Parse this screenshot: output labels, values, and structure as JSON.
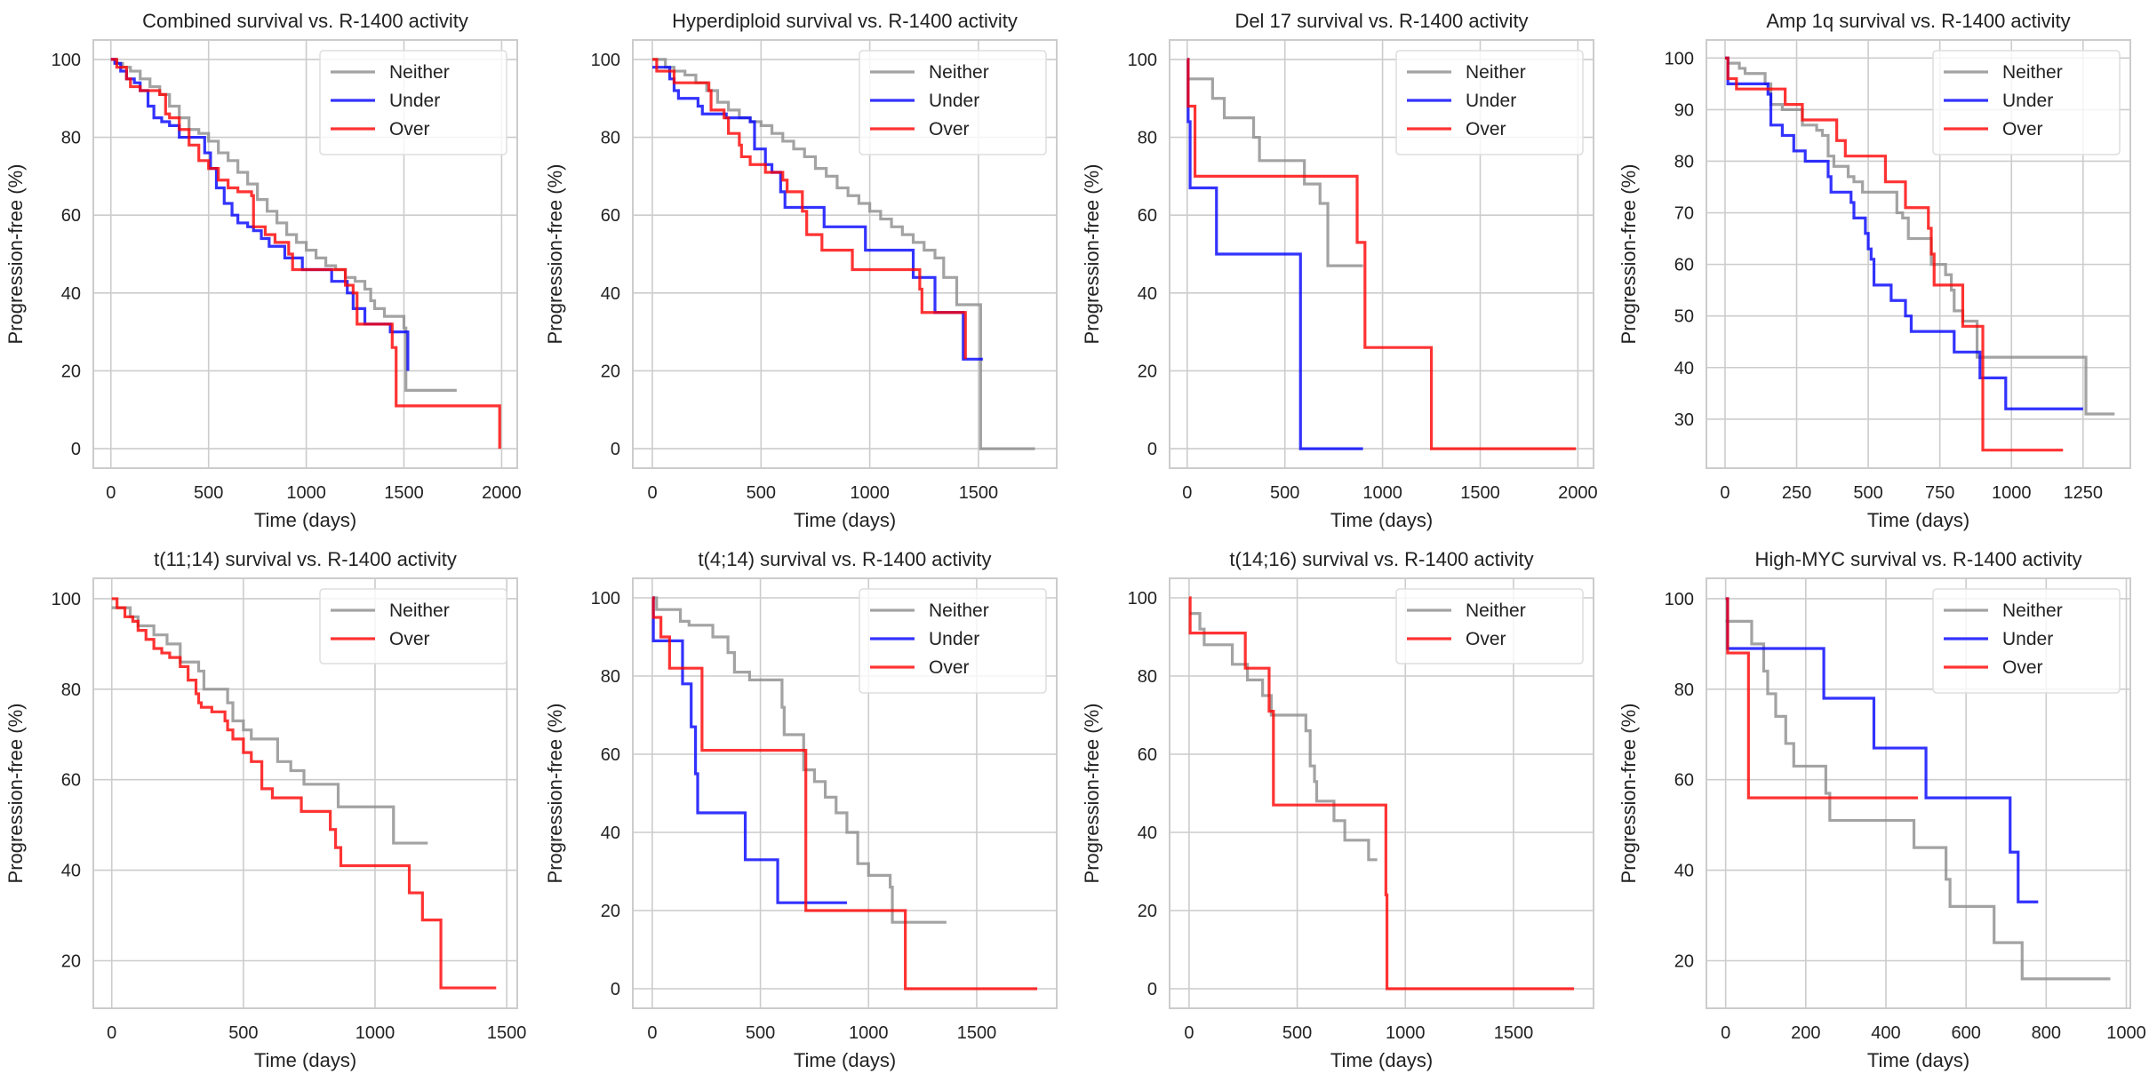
{
  "figure": {
    "series_colors": {
      "Neither": "#8c8c8c",
      "Under": "#0000ff",
      "Over": "#ff0000"
    }
  },
  "chart_data": [
    {
      "type": "line",
      "title": "Combined survival vs. R-1400 activity",
      "xlabel": "Time (days)",
      "ylabel": "Progression-free (%)",
      "xlim": [
        -90,
        2080
      ],
      "ylim": [
        -5,
        105
      ],
      "xticks": [
        0,
        500,
        1000,
        1500,
        2000
      ],
      "yticks": [
        0,
        20,
        40,
        60,
        80,
        100
      ],
      "grid": true,
      "legend": "top-right",
      "series": [
        {
          "name": "Neither",
          "x": [
            0,
            30,
            60,
            100,
            150,
            200,
            250,
            300,
            350,
            400,
            450,
            500,
            550,
            600,
            650,
            700,
            750,
            800,
            850,
            900,
            950,
            1000,
            1050,
            1100,
            1150,
            1200,
            1250,
            1300,
            1330,
            1350,
            1400,
            1500,
            1510,
            1770
          ],
          "y": [
            100,
            99,
            98,
            97,
            95,
            93,
            91,
            88,
            85,
            82,
            81,
            79,
            76,
            74,
            71,
            68,
            64,
            61,
            58,
            55,
            53,
            51,
            49,
            47,
            46,
            44,
            43,
            41,
            38,
            36,
            34,
            31,
            15,
            15
          ]
        },
        {
          "name": "Under",
          "x": [
            0,
            20,
            50,
            80,
            120,
            150,
            190,
            220,
            260,
            300,
            350,
            400,
            450,
            480,
            510,
            540,
            580,
            620,
            650,
            700,
            730,
            770,
            810,
            890,
            980,
            1130,
            1210,
            1240,
            1300,
            1430,
            1520
          ],
          "y": [
            100,
            99,
            97,
            95,
            94,
            92,
            88,
            85,
            84,
            83,
            80,
            80,
            80,
            76,
            72,
            67,
            63,
            60,
            58,
            57,
            56,
            54,
            52,
            49,
            46,
            43,
            40,
            36,
            32,
            30,
            20
          ]
        },
        {
          "name": "Over",
          "x": [
            0,
            30,
            80,
            100,
            150,
            250,
            280,
            300,
            350,
            400,
            450,
            500,
            550,
            600,
            650,
            720,
            730,
            790,
            840,
            910,
            930,
            1140,
            1200,
            1240,
            1260,
            1420,
            1440,
            1460,
            1770,
            1990
          ],
          "y": [
            100,
            98,
            95,
            93,
            92,
            91,
            86,
            85,
            82,
            78,
            74,
            72,
            69,
            67,
            66,
            65,
            57,
            55,
            53,
            50,
            46,
            46,
            42,
            40,
            32,
            32,
            26,
            11,
            11,
            0
          ]
        }
      ]
    },
    {
      "type": "line",
      "title": "Hyperdiploid survival vs. R-1400 activity",
      "xlabel": "Time (days)",
      "ylabel": "Progression-free (%)",
      "xlim": [
        -90,
        1860
      ],
      "ylim": [
        -5,
        105
      ],
      "xticks": [
        0,
        500,
        1000,
        1500
      ],
      "yticks": [
        0,
        20,
        40,
        60,
        80,
        100
      ],
      "grid": true,
      "legend": "top-right",
      "series": [
        {
          "name": "Neither",
          "x": [
            0,
            60,
            100,
            150,
            200,
            250,
            300,
            350,
            400,
            450,
            500,
            550,
            600,
            650,
            700,
            750,
            800,
            850,
            900,
            950,
            1000,
            1050,
            1100,
            1150,
            1200,
            1250,
            1300,
            1340,
            1400,
            1510,
            1760
          ],
          "y": [
            100,
            98,
            97,
            96,
            94,
            92,
            89,
            87,
            85,
            84,
            83,
            81,
            79,
            77,
            75,
            72,
            70,
            67,
            65,
            63,
            61,
            59,
            57,
            55,
            53,
            51,
            49,
            44,
            37,
            0,
            0
          ]
        },
        {
          "name": "Under",
          "x": [
            0,
            70,
            80,
            100,
            120,
            210,
            230,
            340,
            450,
            470,
            520,
            550,
            590,
            610,
            790,
            980,
            1200,
            1300,
            1430,
            1520
          ],
          "y": [
            98,
            98,
            95,
            92,
            90,
            88,
            86,
            85,
            84,
            77,
            73,
            71,
            66,
            62,
            57,
            51,
            44,
            35,
            23,
            23
          ]
        },
        {
          "name": "Over",
          "x": [
            0,
            20,
            80,
            100,
            250,
            260,
            270,
            330,
            350,
            400,
            410,
            450,
            500,
            520,
            600,
            620,
            690,
            710,
            780,
            920,
            1230,
            1240,
            1430,
            1440
          ],
          "y": [
            100,
            97,
            97,
            94,
            94,
            92,
            87,
            85,
            81,
            78,
            75,
            73,
            73,
            71,
            69,
            66,
            61,
            55,
            51,
            46,
            41,
            35,
            35,
            23
          ]
        }
      ]
    },
    {
      "type": "line",
      "title": "Del 17 survival vs. R-1400 activity",
      "xlabel": "Time (days)",
      "ylabel": "Progression-free (%)",
      "xlim": [
        -90,
        2080
      ],
      "ylim": [
        -5,
        105
      ],
      "xticks": [
        0,
        500,
        1000,
        1500,
        2000
      ],
      "yticks": [
        0,
        20,
        40,
        60,
        80,
        100
      ],
      "grid": true,
      "legend": "top-right",
      "series": [
        {
          "name": "Neither",
          "x": [
            0,
            130,
            190,
            340,
            370,
            600,
            680,
            720,
            900
          ],
          "y": [
            95,
            90,
            85,
            80,
            74,
            68,
            63,
            47,
            47
          ]
        },
        {
          "name": "Under",
          "x": [
            0,
            5,
            15,
            150,
            580,
            900
          ],
          "y": [
            100,
            84,
            67,
            50,
            0,
            0
          ]
        },
        {
          "name": "Over",
          "x": [
            0,
            5,
            40,
            870,
            910,
            1250,
            1990
          ],
          "y": [
            100,
            88,
            70,
            53,
            26,
            0,
            0
          ]
        }
      ]
    },
    {
      "type": "line",
      "title": "Amp 1q survival vs. R-1400 activity",
      "xlabel": "Time (days)",
      "ylabel": "Progression-free (%)",
      "xlim": [
        -65,
        1415
      ],
      "ylim": [
        20.5,
        103.5
      ],
      "xticks": [
        0,
        250,
        500,
        750,
        1000,
        1250
      ],
      "yticks": [
        30,
        40,
        50,
        60,
        70,
        80,
        90,
        100
      ],
      "grid": true,
      "legend": "top-right",
      "series": [
        {
          "name": "Neither",
          "x": [
            0,
            10,
            50,
            70,
            140,
            160,
            200,
            270,
            320,
            340,
            360,
            380,
            430,
            450,
            480,
            560,
            600,
            620,
            640,
            720,
            770,
            790,
            800,
            830,
            880,
            900,
            1260,
            1360
          ],
          "y": [
            100,
            99,
            98,
            97,
            95,
            91,
            90,
            87,
            86,
            85,
            81,
            79,
            77,
            76,
            74,
            74,
            70,
            69,
            65,
            60,
            58,
            55,
            51,
            49,
            42,
            42,
            31,
            31
          ]
        },
        {
          "name": "Under",
          "x": [
            0,
            10,
            150,
            160,
            200,
            240,
            280,
            360,
            370,
            440,
            450,
            490,
            500,
            510,
            520,
            580,
            630,
            650,
            800,
            890,
            980,
            1250
          ],
          "y": [
            100,
            95,
            93,
            87,
            85,
            82,
            80,
            77,
            74,
            72,
            69,
            66,
            63,
            61,
            56,
            53,
            50,
            47,
            43,
            38,
            32,
            32
          ]
        },
        {
          "name": "Over",
          "x": [
            0,
            10,
            40,
            210,
            270,
            390,
            420,
            560,
            630,
            710,
            720,
            730,
            830,
            900,
            1180
          ],
          "y": [
            100,
            96,
            94,
            91,
            88,
            84,
            81,
            76,
            71,
            67,
            62,
            56,
            48,
            24,
            24
          ]
        }
      ]
    },
    {
      "type": "line",
      "title": "t(11;14) survival vs. R-1400 activity",
      "xlabel": "Time (days)",
      "ylabel": "Progression-free (%)",
      "xlim": [
        -70,
        1540
      ],
      "ylim": [
        9.5,
        104.5
      ],
      "xticks": [
        0,
        500,
        1000,
        1500
      ],
      "yticks": [
        20,
        40,
        60,
        80,
        100
      ],
      "grid": true,
      "legend": "top-right",
      "series": [
        {
          "name": "Neither",
          "x": [
            0,
            70,
            100,
            160,
            210,
            260,
            330,
            350,
            440,
            460,
            500,
            530,
            630,
            680,
            730,
            860,
            1070,
            1200
          ],
          "y": [
            98,
            96,
            94,
            92,
            90,
            86,
            84,
            80,
            77,
            73,
            71,
            69,
            64,
            62,
            59,
            54,
            46,
            46
          ]
        },
        {
          "name": "Over",
          "x": [
            0,
            20,
            50,
            80,
            100,
            130,
            160,
            190,
            220,
            260,
            290,
            320,
            330,
            340,
            380,
            430,
            440,
            460,
            500,
            530,
            570,
            610,
            720,
            830,
            850,
            870,
            1130,
            1180,
            1250,
            1460
          ],
          "y": [
            100,
            98,
            96,
            95,
            93,
            91,
            89,
            88,
            87,
            85,
            82,
            79,
            77,
            76,
            75,
            73,
            71,
            69,
            66,
            64,
            58,
            56,
            53,
            49,
            45,
            41,
            35,
            29,
            14,
            14
          ]
        }
      ]
    },
    {
      "type": "line",
      "title": "t(4;14) survival vs. R-1400 activity",
      "xlabel": "Time (days)",
      "ylabel": "Progression-free (%)",
      "xlim": [
        -90,
        1870
      ],
      "ylim": [
        -5,
        105
      ],
      "xticks": [
        0,
        500,
        1000,
        1500
      ],
      "yticks": [
        0,
        20,
        40,
        60,
        80,
        100
      ],
      "grid": true,
      "legend": "top-right",
      "series": [
        {
          "name": "Neither",
          "x": [
            0,
            20,
            130,
            170,
            280,
            350,
            380,
            450,
            600,
            610,
            630,
            700,
            750,
            800,
            850,
            900,
            950,
            1000,
            1100,
            1110,
            1360
          ],
          "y": [
            100,
            97,
            94,
            93,
            90,
            86,
            81,
            79,
            72,
            65,
            65,
            56,
            53,
            49,
            45,
            40,
            32,
            29,
            26,
            17,
            17
          ]
        },
        {
          "name": "Under",
          "x": [
            0,
            5,
            140,
            180,
            200,
            210,
            430,
            580,
            900
          ],
          "y": [
            100,
            89,
            78,
            67,
            55,
            45,
            33,
            22,
            22
          ]
        },
        {
          "name": "Over",
          "x": [
            0,
            5,
            40,
            80,
            230,
            710,
            1170,
            1780
          ],
          "y": [
            100,
            95,
            90,
            82,
            61,
            20,
            0,
            0
          ]
        }
      ]
    },
    {
      "type": "line",
      "title": "t(14;16) survival vs. R-1400 activity",
      "xlabel": "Time (days)",
      "ylabel": "Progression-free (%)",
      "xlim": [
        -90,
        1870
      ],
      "ylim": [
        -5,
        105
      ],
      "xticks": [
        0,
        500,
        1000,
        1500
      ],
      "yticks": [
        0,
        20,
        40,
        60,
        80,
        100
      ],
      "grid": true,
      "legend": "top-right",
      "series": [
        {
          "name": "Neither",
          "x": [
            0,
            50,
            70,
            200,
            270,
            340,
            380,
            540,
            560,
            580,
            590,
            670,
            720,
            830,
            870
          ],
          "y": [
            96,
            92,
            88,
            83,
            79,
            75,
            70,
            66,
            57,
            53,
            48,
            43,
            38,
            33,
            33
          ]
        },
        {
          "name": "Over",
          "x": [
            0,
            5,
            260,
            370,
            390,
            910,
            915,
            1780
          ],
          "y": [
            100,
            91,
            82,
            71,
            47,
            24,
            0,
            0
          ]
        }
      ]
    },
    {
      "type": "line",
      "title": "High-MYC survival vs. R-1400 activity",
      "xlabel": "Time (days)",
      "ylabel": "Progression-free (%)",
      "xlim": [
        -48,
        1010
      ],
      "ylim": [
        9.5,
        104.5
      ],
      "xticks": [
        0,
        200,
        400,
        600,
        800,
        1000
      ],
      "yticks": [
        20,
        40,
        60,
        80,
        100
      ],
      "grid": true,
      "legend": "top-right",
      "series": [
        {
          "name": "Neither",
          "x": [
            0,
            65,
            95,
            105,
            125,
            150,
            170,
            250,
            260,
            470,
            550,
            560,
            670,
            740,
            960
          ],
          "y": [
            95,
            90,
            84,
            79,
            74,
            68,
            63,
            57,
            51,
            45,
            38,
            32,
            24,
            16,
            16
          ]
        },
        {
          "name": "Under",
          "x": [
            0,
            5,
            245,
            370,
            500,
            710,
            730,
            780
          ],
          "y": [
            100,
            89,
            78,
            67,
            56,
            44,
            33,
            33
          ]
        },
        {
          "name": "Over",
          "x": [
            0,
            5,
            57,
            480
          ],
          "y": [
            100,
            88,
            56,
            56
          ]
        }
      ]
    }
  ]
}
